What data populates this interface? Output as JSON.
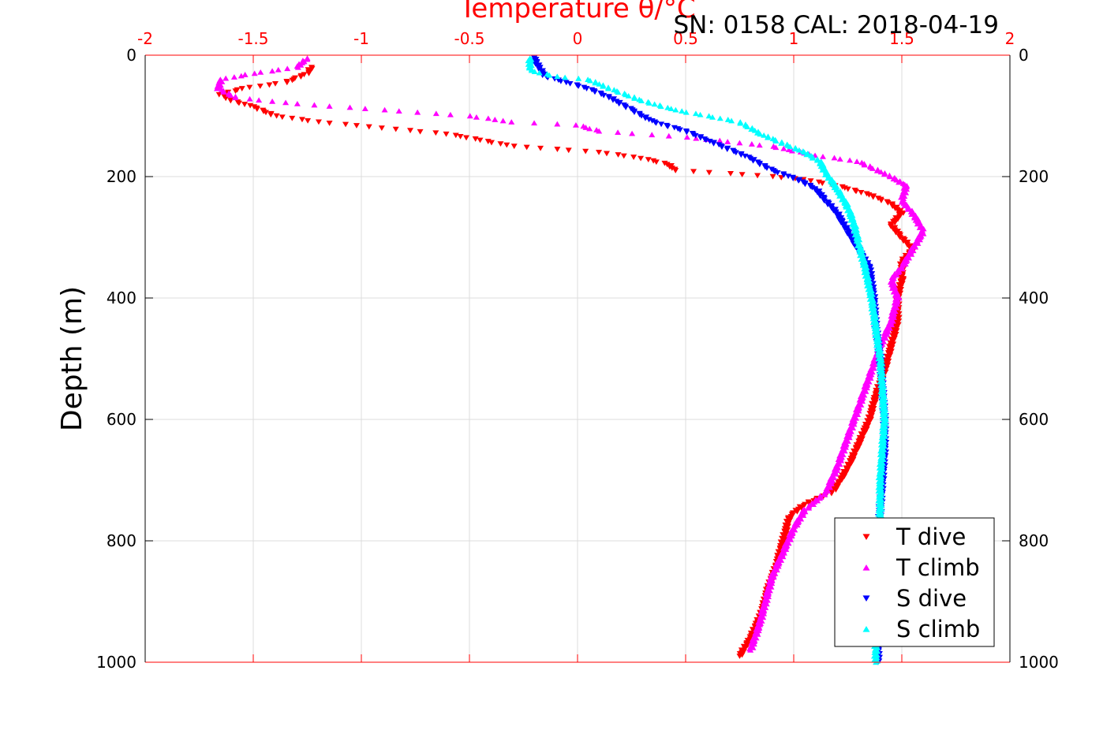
{
  "header": {
    "title": "Temperature θ/°C",
    "annotation": "SN: 0158  CAL: 2018-04-19"
  },
  "colors": {
    "t_axis": "#ff0000",
    "t_dive": "#ff0000",
    "t_climb": "#ff00ff",
    "s_dive": "#0000ff",
    "s_climb": "#00ffff",
    "grid": "#dcdcdc",
    "axis_text": "#000000"
  },
  "chart_data": {
    "type": "scatter",
    "title": "Temperature θ/°C",
    "annotation": "SN: 0158  CAL: 2018-04-19",
    "xlabel": "Temperature θ/°C",
    "ylabel": "Depth (m)",
    "xlim": [
      -2,
      2
    ],
    "ylim": [
      0,
      1000
    ],
    "y_reversed": true,
    "grid": true,
    "legend_position": "bottom-right",
    "x_ticks": [
      "-2",
      "-1.5",
      "-1",
      "-0.5",
      "0",
      "0.5",
      "1",
      "1.5",
      "2"
    ],
    "y_ticks": [
      "0",
      "200",
      "400",
      "600",
      "800",
      "1000"
    ],
    "series": [
      {
        "name": "T dive",
        "marker": "triangle-down",
        "points": [
          [
            -1.23,
            20
          ],
          [
            -1.25,
            30
          ],
          [
            -1.35,
            45
          ],
          [
            -1.55,
            55
          ],
          [
            -1.65,
            65
          ],
          [
            -1.6,
            75
          ],
          [
            -1.5,
            85
          ],
          [
            -1.4,
            100
          ],
          [
            -1.2,
            110
          ],
          [
            -0.9,
            120
          ],
          [
            -0.6,
            130
          ],
          [
            -0.45,
            140
          ],
          [
            -0.3,
            150
          ],
          [
            -0.1,
            155
          ],
          [
            0.1,
            160
          ],
          [
            0.3,
            170
          ],
          [
            0.42,
            180
          ],
          [
            0.45,
            190
          ],
          [
            0.7,
            195
          ],
          [
            0.9,
            200
          ],
          [
            1.05,
            205
          ],
          [
            1.2,
            215
          ],
          [
            1.35,
            230
          ],
          [
            1.45,
            245
          ],
          [
            1.5,
            260
          ],
          [
            1.45,
            280
          ],
          [
            1.5,
            300
          ],
          [
            1.55,
            320
          ],
          [
            1.5,
            340
          ],
          [
            1.5,
            370
          ],
          [
            1.48,
            400
          ],
          [
            1.48,
            440
          ],
          [
            1.45,
            480
          ],
          [
            1.42,
            520
          ],
          [
            1.38,
            560
          ],
          [
            1.35,
            600
          ],
          [
            1.3,
            640
          ],
          [
            1.25,
            680
          ],
          [
            1.18,
            720
          ],
          [
            1.05,
            740
          ],
          [
            0.98,
            760
          ],
          [
            0.95,
            800
          ],
          [
            0.92,
            840
          ],
          [
            0.88,
            880
          ],
          [
            0.85,
            920
          ],
          [
            0.8,
            960
          ],
          [
            0.75,
            990
          ]
        ]
      },
      {
        "name": "T climb",
        "marker": "triangle-up",
        "points": [
          [
            -1.25,
            5
          ],
          [
            -1.3,
            20
          ],
          [
            -1.5,
            30
          ],
          [
            -1.65,
            40
          ],
          [
            -1.66,
            55
          ],
          [
            -1.58,
            70
          ],
          [
            -1.3,
            80
          ],
          [
            -0.9,
            90
          ],
          [
            -0.5,
            100
          ],
          [
            -0.3,
            110
          ],
          [
            0.0,
            115
          ],
          [
            0.1,
            125
          ],
          [
            0.5,
            135
          ],
          [
            0.9,
            150
          ],
          [
            1.1,
            165
          ],
          [
            1.3,
            175
          ],
          [
            1.45,
            200
          ],
          [
            1.52,
            215
          ],
          [
            1.5,
            240
          ],
          [
            1.55,
            260
          ],
          [
            1.6,
            290
          ],
          [
            1.55,
            320
          ],
          [
            1.5,
            350
          ],
          [
            1.45,
            370
          ],
          [
            1.48,
            400
          ],
          [
            1.45,
            440
          ],
          [
            1.4,
            480
          ],
          [
            1.35,
            530
          ],
          [
            1.3,
            580
          ],
          [
            1.25,
            630
          ],
          [
            1.2,
            680
          ],
          [
            1.15,
            720
          ],
          [
            1.05,
            750
          ],
          [
            1.0,
            780
          ],
          [
            0.95,
            820
          ],
          [
            0.9,
            860
          ],
          [
            0.87,
            900
          ],
          [
            0.84,
            940
          ],
          [
            0.8,
            980
          ]
        ]
      },
      {
        "name": "S dive",
        "marker": "triangle-down",
        "points": [
          [
            -0.2,
            5
          ],
          [
            -0.18,
            20
          ],
          [
            -0.15,
            35
          ],
          [
            -0.05,
            45
          ],
          [
            0.05,
            55
          ],
          [
            0.15,
            70
          ],
          [
            0.25,
            90
          ],
          [
            0.35,
            110
          ],
          [
            0.5,
            125
          ],
          [
            0.6,
            140
          ],
          [
            0.7,
            155
          ],
          [
            0.8,
            170
          ],
          [
            0.9,
            190
          ],
          [
            1.02,
            205
          ],
          [
            1.1,
            220
          ],
          [
            1.15,
            240
          ],
          [
            1.2,
            260
          ],
          [
            1.25,
            290
          ],
          [
            1.3,
            320
          ],
          [
            1.35,
            350
          ],
          [
            1.37,
            400
          ],
          [
            1.38,
            450
          ],
          [
            1.4,
            500
          ],
          [
            1.41,
            550
          ],
          [
            1.42,
            600
          ],
          [
            1.42,
            650
          ],
          [
            1.41,
            700
          ],
          [
            1.4,
            750
          ],
          [
            1.39,
            800
          ],
          [
            1.39,
            850
          ],
          [
            1.39,
            900
          ],
          [
            1.39,
            950
          ],
          [
            1.39,
            1000
          ]
        ]
      },
      {
        "name": "S climb",
        "marker": "triangle-up",
        "points": [
          [
            -0.22,
            5
          ],
          [
            -0.22,
            25
          ],
          [
            -0.1,
            35
          ],
          [
            0.05,
            40
          ],
          [
            0.15,
            55
          ],
          [
            0.3,
            75
          ],
          [
            0.45,
            90
          ],
          [
            0.6,
            100
          ],
          [
            0.75,
            110
          ],
          [
            0.85,
            130
          ],
          [
            0.95,
            145
          ],
          [
            1.05,
            160
          ],
          [
            1.12,
            175
          ],
          [
            1.15,
            195
          ],
          [
            1.2,
            220
          ],
          [
            1.25,
            250
          ],
          [
            1.28,
            280
          ],
          [
            1.3,
            310
          ],
          [
            1.33,
            350
          ],
          [
            1.36,
            400
          ],
          [
            1.38,
            450
          ],
          [
            1.4,
            500
          ],
          [
            1.41,
            550
          ],
          [
            1.42,
            600
          ],
          [
            1.41,
            650
          ],
          [
            1.4,
            700
          ],
          [
            1.4,
            750
          ],
          [
            1.39,
            800
          ],
          [
            1.38,
            850
          ],
          [
            1.38,
            900
          ],
          [
            1.38,
            950
          ],
          [
            1.38,
            1000
          ]
        ]
      }
    ]
  }
}
